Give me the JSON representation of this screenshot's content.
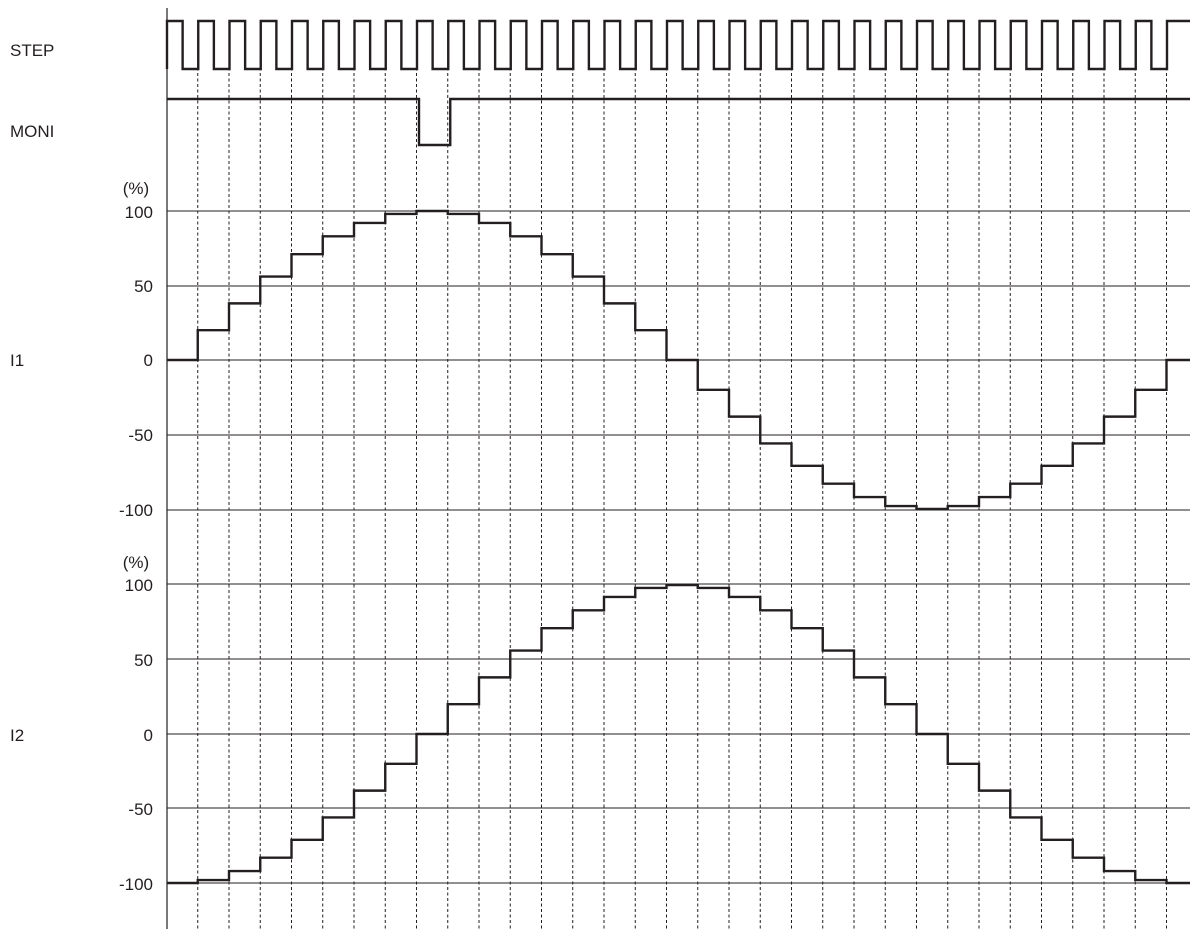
{
  "chart_data": {
    "type": "line",
    "step_signal": {
      "label": "STEP",
      "pulse_count": 32
    },
    "moni_signal": {
      "label": "MONI",
      "high_level": 1,
      "low_level": 0,
      "low_during_step": 8
    },
    "steps": [
      0,
      1,
      2,
      3,
      4,
      5,
      6,
      7,
      8,
      9,
      10,
      11,
      12,
      13,
      14,
      15,
      16,
      17,
      18,
      19,
      20,
      21,
      22,
      23,
      24,
      25,
      26,
      27,
      28,
      29,
      30,
      31,
      32
    ],
    "panels": [
      {
        "signal_label": "I1",
        "unit": "(%)",
        "yticks": [
          "100",
          "50",
          "0",
          "-50",
          "-100"
        ],
        "ylim": [
          -100,
          100
        ],
        "values": [
          0,
          20,
          38,
          56,
          71,
          83,
          92,
          98,
          100,
          98,
          92,
          83,
          71,
          56,
          38,
          20,
          0,
          -20,
          -38,
          -56,
          -71,
          -83,
          -92,
          -98,
          -100,
          -98,
          -92,
          -83,
          -71,
          -56,
          -38,
          -20,
          0
        ]
      },
      {
        "signal_label": "I2",
        "unit": "(%)",
        "yticks": [
          "100",
          "50",
          "0",
          "-50",
          "-100"
        ],
        "ylim": [
          -100,
          100
        ],
        "values": [
          -100,
          -98,
          -92,
          -83,
          -71,
          -56,
          -38,
          -20,
          0,
          20,
          38,
          56,
          71,
          83,
          92,
          98,
          100,
          98,
          92,
          83,
          71,
          56,
          38,
          20,
          0,
          -20,
          -38,
          -56,
          -71,
          -83,
          -92,
          -98,
          -100
        ]
      }
    ],
    "grid": true,
    "color": "#231f20"
  }
}
